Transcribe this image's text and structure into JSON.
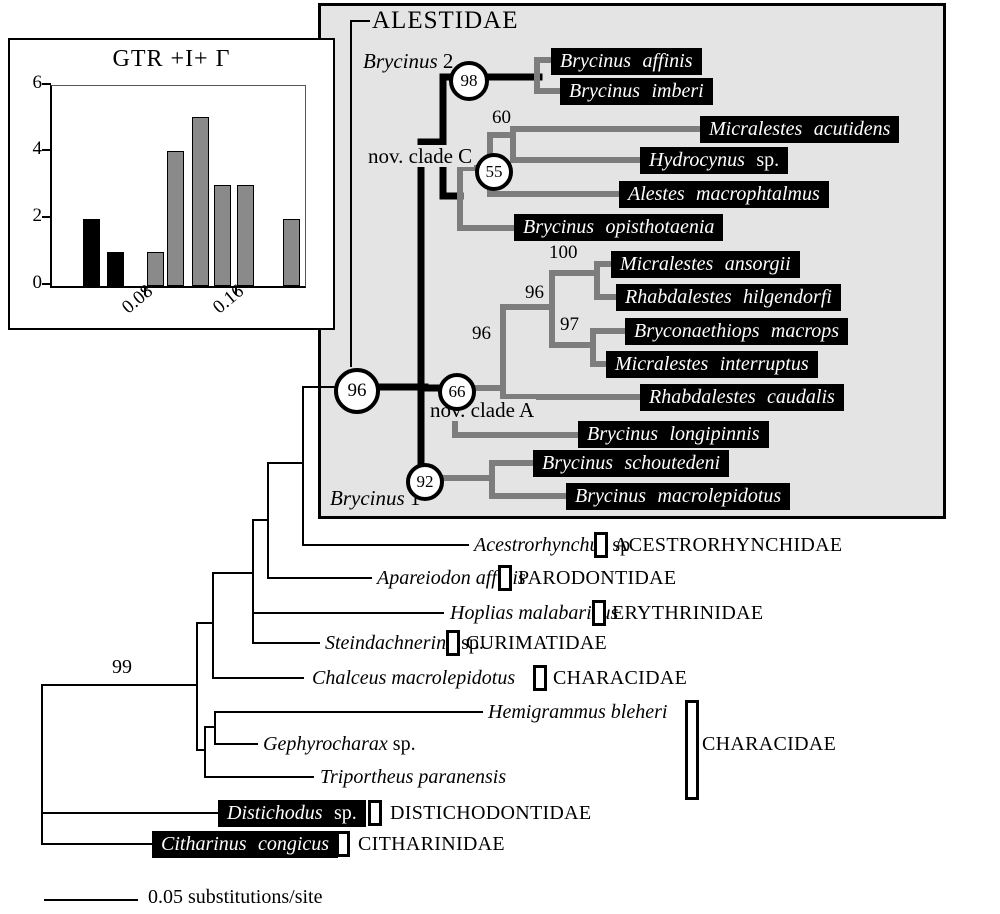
{
  "colors": {
    "branch_gray": "#7d7d7d",
    "ingroup_box_bg": "#e4e4e4",
    "taxon_box_bg": "#000000",
    "taxon_box_text": "#ffffff",
    "bar_black": "#000000",
    "bar_gray": "#8a8a8a"
  },
  "inset": {
    "title": "GTR +I+ Γ",
    "y_ticks": [
      "6",
      "4",
      "2",
      "0"
    ],
    "x_ticks": [
      "0.08",
      "0.16"
    ]
  },
  "chart_data": {
    "type": "bar",
    "title": "GTR +I+ Γ",
    "x_estimated": [
      0.03,
      0.05,
      0.09,
      0.1,
      0.12,
      0.14,
      0.16,
      0.2
    ],
    "values": [
      2,
      1,
      1,
      4,
      5,
      3,
      3,
      2
    ],
    "bar_colors": [
      "black",
      "black",
      "gray",
      "gray",
      "gray",
      "gray",
      "gray",
      "gray"
    ],
    "ylim": [
      0,
      6
    ],
    "yticks": [
      0,
      2,
      4,
      6
    ],
    "xticks": [
      0.08,
      0.16
    ],
    "xlabel": "",
    "ylabel": "",
    "grid": false,
    "legend": false
  },
  "ingroup": {
    "family_label": "ALESTIDAE",
    "clade_top": {
      "italic": "Brycinus",
      "roman": "2"
    },
    "clade_c_label": "nov. clade C",
    "clade_a_label": "nov. clade A",
    "clade_bottom": {
      "italic": "Brycinus",
      "roman": "1"
    },
    "node_root": "96",
    "node_brycinus2": "98",
    "node_clade_c": "55",
    "node_clade_a": "66",
    "node_brycinus1": "92",
    "support_60": "60",
    "support_100": "100",
    "support_96_upper": "96",
    "support_97": "97",
    "support_96_lower": "96",
    "taxa": [
      {
        "italic": "Brycinus affinis",
        "roman": ""
      },
      {
        "italic": "Brycinus imberi",
        "roman": ""
      },
      {
        "italic": "Micralestes acutidens",
        "roman": ""
      },
      {
        "italic": "Hydrocynus",
        "roman": "sp."
      },
      {
        "italic": "Alestes macrophtalmus",
        "roman": ""
      },
      {
        "italic": "Brycinus opisthotaenia",
        "roman": ""
      },
      {
        "italic": "Micralestes ansorgii",
        "roman": ""
      },
      {
        "italic": "Rhabdalestes hilgendorfi",
        "roman": ""
      },
      {
        "italic": "Bryconaethiops macrops",
        "roman": ""
      },
      {
        "italic": "Micralestes interruptus",
        "roman": ""
      },
      {
        "italic": "Rhabdalestes caudalis",
        "roman": ""
      },
      {
        "italic": "Brycinus longipinnis",
        "roman": ""
      },
      {
        "italic": "Brycinus schoutedeni",
        "roman": ""
      },
      {
        "italic": "Brycinus macrolepidotus",
        "roman": ""
      }
    ]
  },
  "outgroup": {
    "root_support": "99",
    "characidae_bracket_label": "CHARACIDAE",
    "taxa": [
      {
        "italic": "Acestrorhynchus",
        "roman": "sp",
        "family": "ACESTRORHYNCHIDAE"
      },
      {
        "italic": "Apareiodon affinis",
        "roman": "",
        "family": "PARODONTIDAE"
      },
      {
        "italic": "Hoplias malabaricus",
        "roman": "",
        "family": "ERYTHRINIDAE"
      },
      {
        "italic": "Steindachnerina",
        "roman": "sp.",
        "family": "CURIMATIDAE"
      },
      {
        "italic": "Chalceus macrolepidotus",
        "roman": "",
        "family": "CHARACIDAE"
      },
      {
        "italic": "Hemigrammus bleheri",
        "roman": "",
        "family": ""
      },
      {
        "italic": "Gephyrocharax",
        "roman": "sp.",
        "family": ""
      },
      {
        "italic": "Triportheus paranensis",
        "roman": "",
        "family": ""
      },
      {
        "italic": "Distichodus",
        "roman": "sp.",
        "family": "DISTICHODONTIDAE"
      },
      {
        "italic": "Citharinus congicus",
        "roman": "",
        "family": "CITHARINIDAE"
      }
    ]
  },
  "scale_bar_label": "0.05 substitutions/site"
}
